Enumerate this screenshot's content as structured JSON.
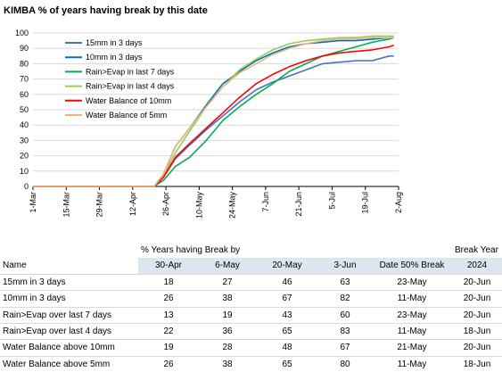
{
  "chart_data": {
    "type": "line",
    "title": "KIMBA % of years having break by this date",
    "ylim": [
      0,
      100
    ],
    "yticks": [
      0,
      10,
      20,
      30,
      40,
      50,
      60,
      70,
      80,
      90,
      100
    ],
    "x_tick_labels": [
      "1-Mar",
      "15-Mar",
      "29-Mar",
      "12-Apr",
      "26-Apr",
      "10-May",
      "24-May",
      "7-Jun",
      "21-Jun",
      "5-Jul",
      "19-Jul",
      "2-Aug"
    ],
    "grid": "horizontal",
    "legend_position": "top-left",
    "series": [
      {
        "name": "15mm in 3 days",
        "color": "#4472c4",
        "points": [
          [
            "1-Mar",
            0
          ],
          [
            "21-Apr",
            0
          ],
          [
            "25-Apr",
            6
          ],
          [
            "30-Apr",
            18
          ],
          [
            "6-May",
            27
          ],
          [
            "13-May",
            37
          ],
          [
            "20-May",
            46
          ],
          [
            "27-May",
            55
          ],
          [
            "3-Jun",
            63
          ],
          [
            "10-Jun",
            68
          ],
          [
            "17-Jun",
            72
          ],
          [
            "24-Jun",
            76
          ],
          [
            "1-Jul",
            80
          ],
          [
            "8-Jul",
            81
          ],
          [
            "15-Jul",
            82
          ],
          [
            "22-Jul",
            82
          ],
          [
            "29-Jul",
            85
          ],
          [
            "31-Jul",
            85
          ]
        ]
      },
      {
        "name": "10mm in 3 days",
        "color": "#0070c0",
        "points": [
          [
            "1-Mar",
            0
          ],
          [
            "21-Apr",
            0
          ],
          [
            "25-Apr",
            8
          ],
          [
            "30-Apr",
            26
          ],
          [
            "6-May",
            38
          ],
          [
            "13-May",
            53
          ],
          [
            "20-May",
            67
          ],
          [
            "27-May",
            75
          ],
          [
            "3-Jun",
            82
          ],
          [
            "10-Jun",
            87
          ],
          [
            "17-Jun",
            91
          ],
          [
            "24-Jun",
            93
          ],
          [
            "1-Jul",
            94
          ],
          [
            "8-Jul",
            95
          ],
          [
            "15-Jul",
            95
          ],
          [
            "22-Jul",
            96
          ],
          [
            "29-Jul",
            97
          ],
          [
            "31-Jul",
            97
          ]
        ]
      },
      {
        "name": "Rain>Evap in last 7 days",
        "color": "#00b050",
        "points": [
          [
            "1-Mar",
            0
          ],
          [
            "21-Apr",
            0
          ],
          [
            "25-Apr",
            4
          ],
          [
            "30-Apr",
            13
          ],
          [
            "6-May",
            19
          ],
          [
            "13-May",
            30
          ],
          [
            "20-May",
            43
          ],
          [
            "27-May",
            52
          ],
          [
            "3-Jun",
            60
          ],
          [
            "10-Jun",
            67
          ],
          [
            "17-Jun",
            75
          ],
          [
            "24-Jun",
            80
          ],
          [
            "1-Jul",
            85
          ],
          [
            "8-Jul",
            88
          ],
          [
            "15-Jul",
            91
          ],
          [
            "22-Jul",
            94
          ],
          [
            "29-Jul",
            96
          ],
          [
            "31-Jul",
            97
          ]
        ]
      },
      {
        "name": "Rain>Evap in last 4 days",
        "color": "#92d050",
        "points": [
          [
            "1-Mar",
            0
          ],
          [
            "21-Apr",
            0
          ],
          [
            "25-Apr",
            7
          ],
          [
            "30-Apr",
            22
          ],
          [
            "6-May",
            36
          ],
          [
            "13-May",
            52
          ],
          [
            "20-May",
            65
          ],
          [
            "27-May",
            76
          ],
          [
            "3-Jun",
            83
          ],
          [
            "10-Jun",
            89
          ],
          [
            "17-Jun",
            93
          ],
          [
            "24-Jun",
            95
          ],
          [
            "1-Jul",
            96
          ],
          [
            "8-Jul",
            97
          ],
          [
            "15-Jul",
            97
          ],
          [
            "22-Jul",
            98
          ],
          [
            "29-Jul",
            98
          ],
          [
            "31-Jul",
            98
          ]
        ]
      },
      {
        "name": "Water Balance of 10mm",
        "color": "#ff0000",
        "points": [
          [
            "1-Mar",
            0
          ],
          [
            "21-Apr",
            0
          ],
          [
            "25-Apr",
            6
          ],
          [
            "30-Apr",
            19
          ],
          [
            "6-May",
            28
          ],
          [
            "13-May",
            38
          ],
          [
            "20-May",
            48
          ],
          [
            "27-May",
            58
          ],
          [
            "3-Jun",
            67
          ],
          [
            "10-Jun",
            73
          ],
          [
            "17-Jun",
            78
          ],
          [
            "24-Jun",
            82
          ],
          [
            "1-Jul",
            85
          ],
          [
            "8-Jul",
            87
          ],
          [
            "15-Jul",
            88
          ],
          [
            "22-Jul",
            89
          ],
          [
            "29-Jul",
            91
          ],
          [
            "31-Jul",
            92
          ]
        ]
      },
      {
        "name": "Water Balance of 5mm",
        "color": "#f4b183",
        "points": [
          [
            "1-Mar",
            0
          ],
          [
            "21-Apr",
            0
          ],
          [
            "25-Apr",
            8
          ],
          [
            "30-Apr",
            26
          ],
          [
            "6-May",
            38
          ],
          [
            "13-May",
            52
          ],
          [
            "20-May",
            65
          ],
          [
            "27-May",
            74
          ],
          [
            "3-Jun",
            80
          ],
          [
            "10-Jun",
            86
          ],
          [
            "17-Jun",
            90
          ],
          [
            "24-Jun",
            93
          ],
          [
            "1-Jul",
            95
          ],
          [
            "8-Jul",
            96
          ],
          [
            "15-Jul",
            96
          ],
          [
            "22-Jul",
            97
          ],
          [
            "29-Jul",
            97
          ],
          [
            "31-Jul",
            97
          ]
        ]
      }
    ]
  },
  "table": {
    "group_header": "% Years having Break by",
    "break_year_header": "Break Year",
    "name_header": "Name",
    "date_headers": [
      "30-Apr",
      "6-May",
      "20-May",
      "3-Jun"
    ],
    "date50_header": "Date 50% Break",
    "year": "2024",
    "rows": [
      {
        "name": "15mm in 3 days",
        "values": [
          "18",
          "27",
          "46",
          "63"
        ],
        "date50": "23-May",
        "break": "20-Jun"
      },
      {
        "name": "10mm in 3 days",
        "values": [
          "26",
          "38",
          "67",
          "82"
        ],
        "date50": "11-May",
        "break": "20-Jun"
      },
      {
        "name": "Rain>Evap over last 7 days",
        "values": [
          "13",
          "19",
          "43",
          "60"
        ],
        "date50": "23-May",
        "break": "20-Jun"
      },
      {
        "name": "Rain>Evap over last 4 days",
        "values": [
          "22",
          "36",
          "65",
          "83"
        ],
        "date50": "11-May",
        "break": "18-Jun"
      },
      {
        "name": "Water Balance above 10mm",
        "values": [
          "19",
          "28",
          "48",
          "67"
        ],
        "date50": "21-May",
        "break": "20-Jun"
      },
      {
        "name": "Water Balance above 5mm",
        "values": [
          "26",
          "38",
          "65",
          "80"
        ],
        "date50": "11-May",
        "break": "18-Jun"
      }
    ]
  }
}
